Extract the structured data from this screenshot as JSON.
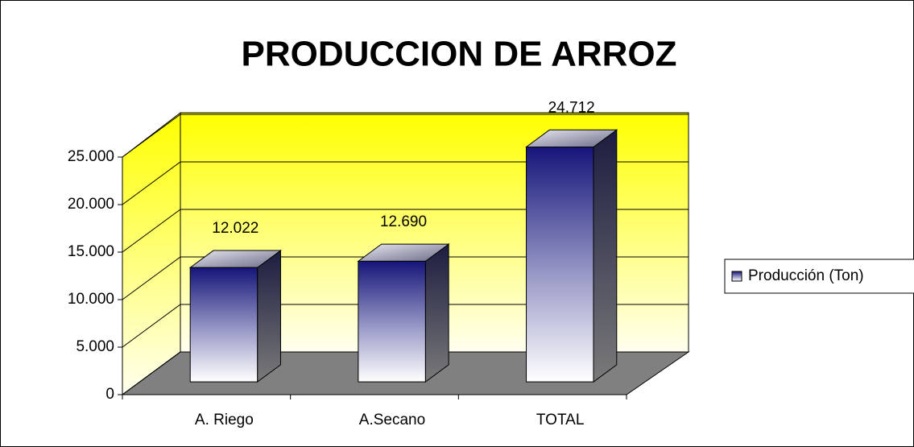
{
  "chart_data": {
    "type": "bar",
    "title": "PRODUCCION DE ARROZ",
    "categories": [
      "A. Riego",
      "A.Secano",
      "TOTAL"
    ],
    "series": [
      {
        "name": "Producción (Ton)",
        "color": "#1a1a80",
        "values": [
          12022,
          12690,
          24712
        ],
        "value_labels": [
          "12.022",
          "12.690",
          "24.712"
        ]
      }
    ],
    "ylim": [
      0,
      25000
    ],
    "yticks": [
      0,
      {
        "value": 5000,
        "label": "5.000"
      },
      {
        "value": 10000,
        "label": "10.000"
      },
      {
        "value": 15000,
        "label": "15.000"
      },
      {
        "value": 20000,
        "label": "20.000"
      },
      {
        "value": 25000,
        "label": "25.000"
      }
    ],
    "grid": true,
    "legend": "right"
  }
}
